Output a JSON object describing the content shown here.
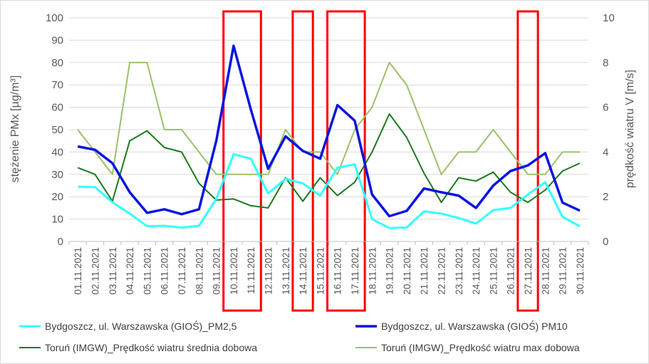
{
  "chart_data": {
    "type": "line",
    "x": [
      "01.11.2021",
      "02.11.2021",
      "03.11.2021",
      "04.11.2021",
      "05.11.2021",
      "06.11.2021",
      "07.11.2021",
      "08.11.2021",
      "09.11.2021",
      "10.11.2021",
      "11.11.2021",
      "12.11.2021",
      "13.11.2021",
      "14.11.2021",
      "15.11.2021",
      "16.11.2021",
      "17.11.2021",
      "18.11.2021",
      "19.11.2021",
      "20.11.2021",
      "21.11.2021",
      "22.11.2021",
      "23.11.2021",
      "24.11.2021",
      "25.11.2021",
      "26.11.2021",
      "27.11.2021",
      "28.11.2021",
      "29.11.2021",
      "30.11.2021"
    ],
    "ylabel": "stężenie PMx [µg/m³]",
    "y2label": "prędkość wiatru V [m/s]",
    "ylim": [
      0,
      100
    ],
    "y2lim": [
      0,
      10
    ],
    "yticks": [
      0,
      10,
      20,
      30,
      40,
      50,
      60,
      70,
      80,
      90,
      100
    ],
    "y2ticks": [
      0,
      2,
      4,
      6,
      8,
      10
    ],
    "grid": true,
    "legend_position": "bottom",
    "highlight_boxes": [
      {
        "from": "10.11.2021",
        "to": "11.11.2021",
        "color": "#ff0000"
      },
      {
        "from": "14.11.2021",
        "to": "14.11.2021",
        "color": "#ff0000"
      },
      {
        "from": "16.11.2021",
        "to": "17.11.2021",
        "color": "#ff0000"
      },
      {
        "from": "27.11.2021",
        "to": "27.11.2021",
        "color": "#ff0000"
      }
    ],
    "series": [
      {
        "name": "Bydgoszcz, ul. Warszawska (GIOŚ)_PM2,5",
        "axis": "left",
        "color": "#33ffff",
        "width": 3,
        "values": [
          24.5,
          24.3,
          17.5,
          12.5,
          6.8,
          7,
          6.2,
          7,
          19,
          39,
          37,
          21.5,
          28,
          26,
          20.5,
          33,
          34.5,
          10,
          6,
          6.3,
          13.5,
          12.5,
          10.5,
          8,
          14,
          15,
          21,
          26.5,
          11,
          6.8
        ]
      },
      {
        "name": "Bydgoszcz, ul. Warszawska (GIOŚ) PM10",
        "axis": "left",
        "color": "#0a14e0",
        "width": 3.5,
        "values": [
          42.5,
          41,
          35,
          22,
          12.8,
          14.4,
          12.2,
          14.4,
          45,
          87.5,
          59,
          32.5,
          47,
          40.5,
          37,
          61,
          54,
          21,
          11.3,
          13.7,
          23.7,
          22,
          20.5,
          15,
          25,
          31.5,
          34,
          39.5,
          17.4,
          13.8
        ]
      },
      {
        "name": "Toruń (IMGW)_Prędkość wiatru średnia dobowa",
        "axis": "right",
        "color": "#1d7a1d",
        "width": 2,
        "values": [
          3.3,
          3,
          1.8,
          4.5,
          4.95,
          4.2,
          4,
          2.6,
          1.85,
          1.9,
          1.6,
          1.5,
          2.85,
          1.8,
          2.85,
          2.05,
          2.65,
          4,
          5.7,
          4.65,
          3.05,
          1.75,
          2.85,
          2.7,
          3.1,
          2.2,
          1.75,
          2.3,
          3.15,
          3.5
        ]
      },
      {
        "name": "Toruń (IMGW)_Prędkość wiatru max dobowa",
        "axis": "right",
        "color": "#9bc169",
        "width": 2,
        "values": [
          5,
          4,
          3,
          8,
          8,
          5,
          5,
          4,
          3,
          3,
          3,
          3,
          5,
          4,
          4,
          3,
          5,
          6,
          8,
          7,
          5,
          3,
          4,
          4,
          5,
          4,
          3,
          3,
          4,
          4
        ]
      }
    ]
  }
}
